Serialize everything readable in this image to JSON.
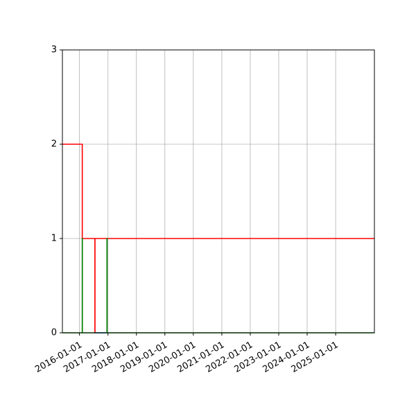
{
  "chart_data": {
    "type": "line",
    "title": "",
    "xlabel": "",
    "ylabel": "",
    "grid": true,
    "xlim": [
      "2015-05-27",
      "2026-05-13"
    ],
    "ylim": [
      0,
      3
    ],
    "x_ticks": [
      "2016-01-01",
      "2017-01-01",
      "2018-01-01",
      "2019-01-01",
      "2020-01-01",
      "2021-01-01",
      "2022-01-01",
      "2023-01-01",
      "2024-01-01",
      "2025-01-01"
    ],
    "y_ticks": [
      0,
      1,
      2,
      3
    ],
    "series": [
      {
        "color": "#ff0000",
        "step": true,
        "x": [
          "2015-05-27",
          "2016-02-06",
          "2016-02-06",
          "2016-07-17",
          "2016-07-17",
          "2016-07-18",
          "2016-07-18",
          "2026-05-13"
        ],
        "y": [
          2,
          2,
          1,
          1,
          0,
          0,
          1,
          1
        ]
      },
      {
        "color": "#008000",
        "step": true,
        "x": [
          "2015-05-27",
          "2016-02-06",
          "2016-02-06",
          "2016-02-07",
          "2016-02-07",
          "2016-12-19",
          "2016-12-19",
          "2016-12-20",
          "2016-12-20",
          "2026-05-13"
        ],
        "y": [
          0,
          0,
          1,
          1,
          0,
          0,
          1,
          1,
          0,
          0
        ]
      },
      {
        "color": "#1f5fa8",
        "step": true,
        "x": [
          "2016-07-18",
          "2016-07-18",
          "2016-12-19",
          "2016-12-19"
        ],
        "y": [
          0,
          0,
          0,
          0
        ]
      }
    ]
  }
}
